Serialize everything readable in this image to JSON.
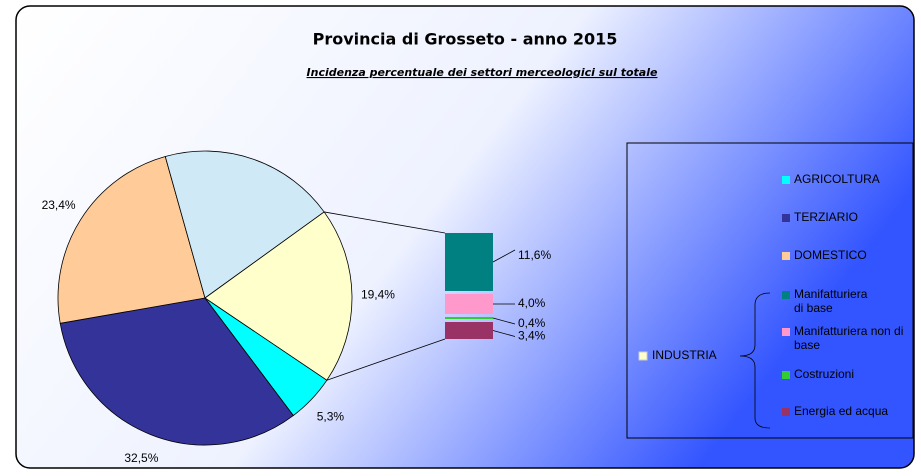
{
  "chart_data": {
    "type": "pie",
    "title": "Provincia di Grosseto - anno 2015",
    "subtitle": "Incidenza percentuale dei settori merceologici sul totale",
    "categories": [
      "AGRICOLTURA",
      "TERZIARIO",
      "DOMESTICO",
      null,
      "INDUSTRIA"
    ],
    "values": [
      5.3,
      32.5,
      23.4,
      19.4,
      19.4
    ],
    "value_labels": [
      "5,3%",
      "32,5%",
      "23,4%",
      null,
      "19,4%"
    ],
    "colors": [
      "#00ffff",
      "#333399",
      "#ffcc99",
      "#cfe9f7",
      "#ffffcc"
    ],
    "breakdown": {
      "categories": [
        "Manifatturiera di base",
        "Manifatturiera non di base",
        "Costruzioni",
        "Energia ed acqua"
      ],
      "values": [
        11.6,
        4.0,
        0.4,
        3.4
      ],
      "value_labels": [
        "11,6%",
        "4,0%",
        "0,4%",
        "3,4%"
      ],
      "colors": [
        "#008080",
        "#ff99cc",
        "#33cc33",
        "#993366"
      ]
    }
  }
}
